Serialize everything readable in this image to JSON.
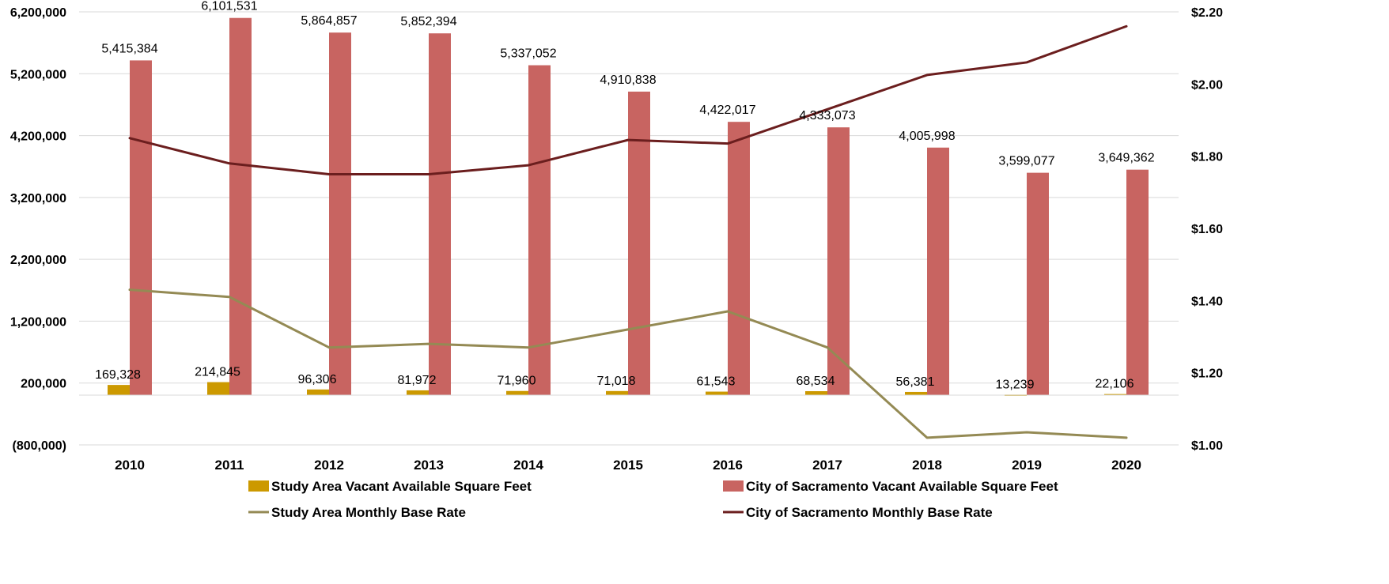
{
  "chart_data": {
    "type": "bar",
    "categories": [
      "2010",
      "2011",
      "2012",
      "2013",
      "2014",
      "2015",
      "2016",
      "2017",
      "2018",
      "2019",
      "2020"
    ],
    "series": [
      {
        "name": "Study Area Vacant Available Square Feet",
        "type": "bar",
        "axis": "left",
        "color": "#CC9900",
        "values": [
          169328,
          214845,
          96306,
          81972,
          71960,
          71018,
          61543,
          68534,
          56381,
          13239,
          22106
        ],
        "labels": [
          "169,328",
          "214,845",
          "96,306",
          "81,972",
          "71,960",
          "71,018",
          "61,543",
          "68,534",
          "56,381",
          "13,239",
          "22,106"
        ]
      },
      {
        "name": "City of Sacramento Vacant Available Square Feet",
        "type": "bar",
        "axis": "left",
        "color": "#C86461",
        "values": [
          5415384,
          6101531,
          5864857,
          5852394,
          5337052,
          4910838,
          4422017,
          4333073,
          4005998,
          3599077,
          3649362
        ],
        "labels": [
          "5,415,384",
          "6,101,531",
          "5,864,857",
          "5,852,394",
          "5,337,052",
          "4,910,838",
          "4,422,017",
          "4,333,073",
          "4,005,998",
          "3,599,077",
          "3,649,362"
        ]
      },
      {
        "name": "Study Area Monthly Base Rate",
        "type": "line",
        "axis": "right",
        "color": "#948A54",
        "values": [
          1.43,
          1.41,
          1.27,
          1.28,
          1.27,
          1.32,
          1.37,
          1.27,
          1.02,
          1.035,
          1.02
        ]
      },
      {
        "name": "City of Sacramento Monthly Base Rate",
        "type": "line",
        "axis": "right",
        "color": "#6B1E1E",
        "values": [
          1.85,
          1.78,
          1.75,
          1.75,
          1.775,
          1.845,
          1.835,
          1.93,
          2.025,
          2.06,
          2.16
        ]
      }
    ],
    "y_left": {
      "ticks": [
        6200000,
        5200000,
        4200000,
        3200000,
        2200000,
        1200000,
        200000,
        -800000
      ],
      "tick_labels": [
        "6,200,000",
        "5,200,000",
        "4,200,000",
        "3,200,000",
        "2,200,000",
        "1,200,000",
        "200,000",
        "(800,000)"
      ],
      "ylim": [
        -800000,
        6200000
      ]
    },
    "y_right": {
      "ticks": [
        2.2,
        2.0,
        1.8,
        1.6,
        1.4,
        1.2,
        1.0
      ],
      "tick_labels": [
        "$2.20",
        "$2.00",
        "$1.80",
        "$1.60",
        "$1.40",
        "$1.20",
        "$1.00"
      ],
      "ylim": [
        1.0,
        2.2
      ]
    },
    "grid": true,
    "legend": "bottom",
    "title": "",
    "xlabel": "",
    "ylabel": ""
  }
}
